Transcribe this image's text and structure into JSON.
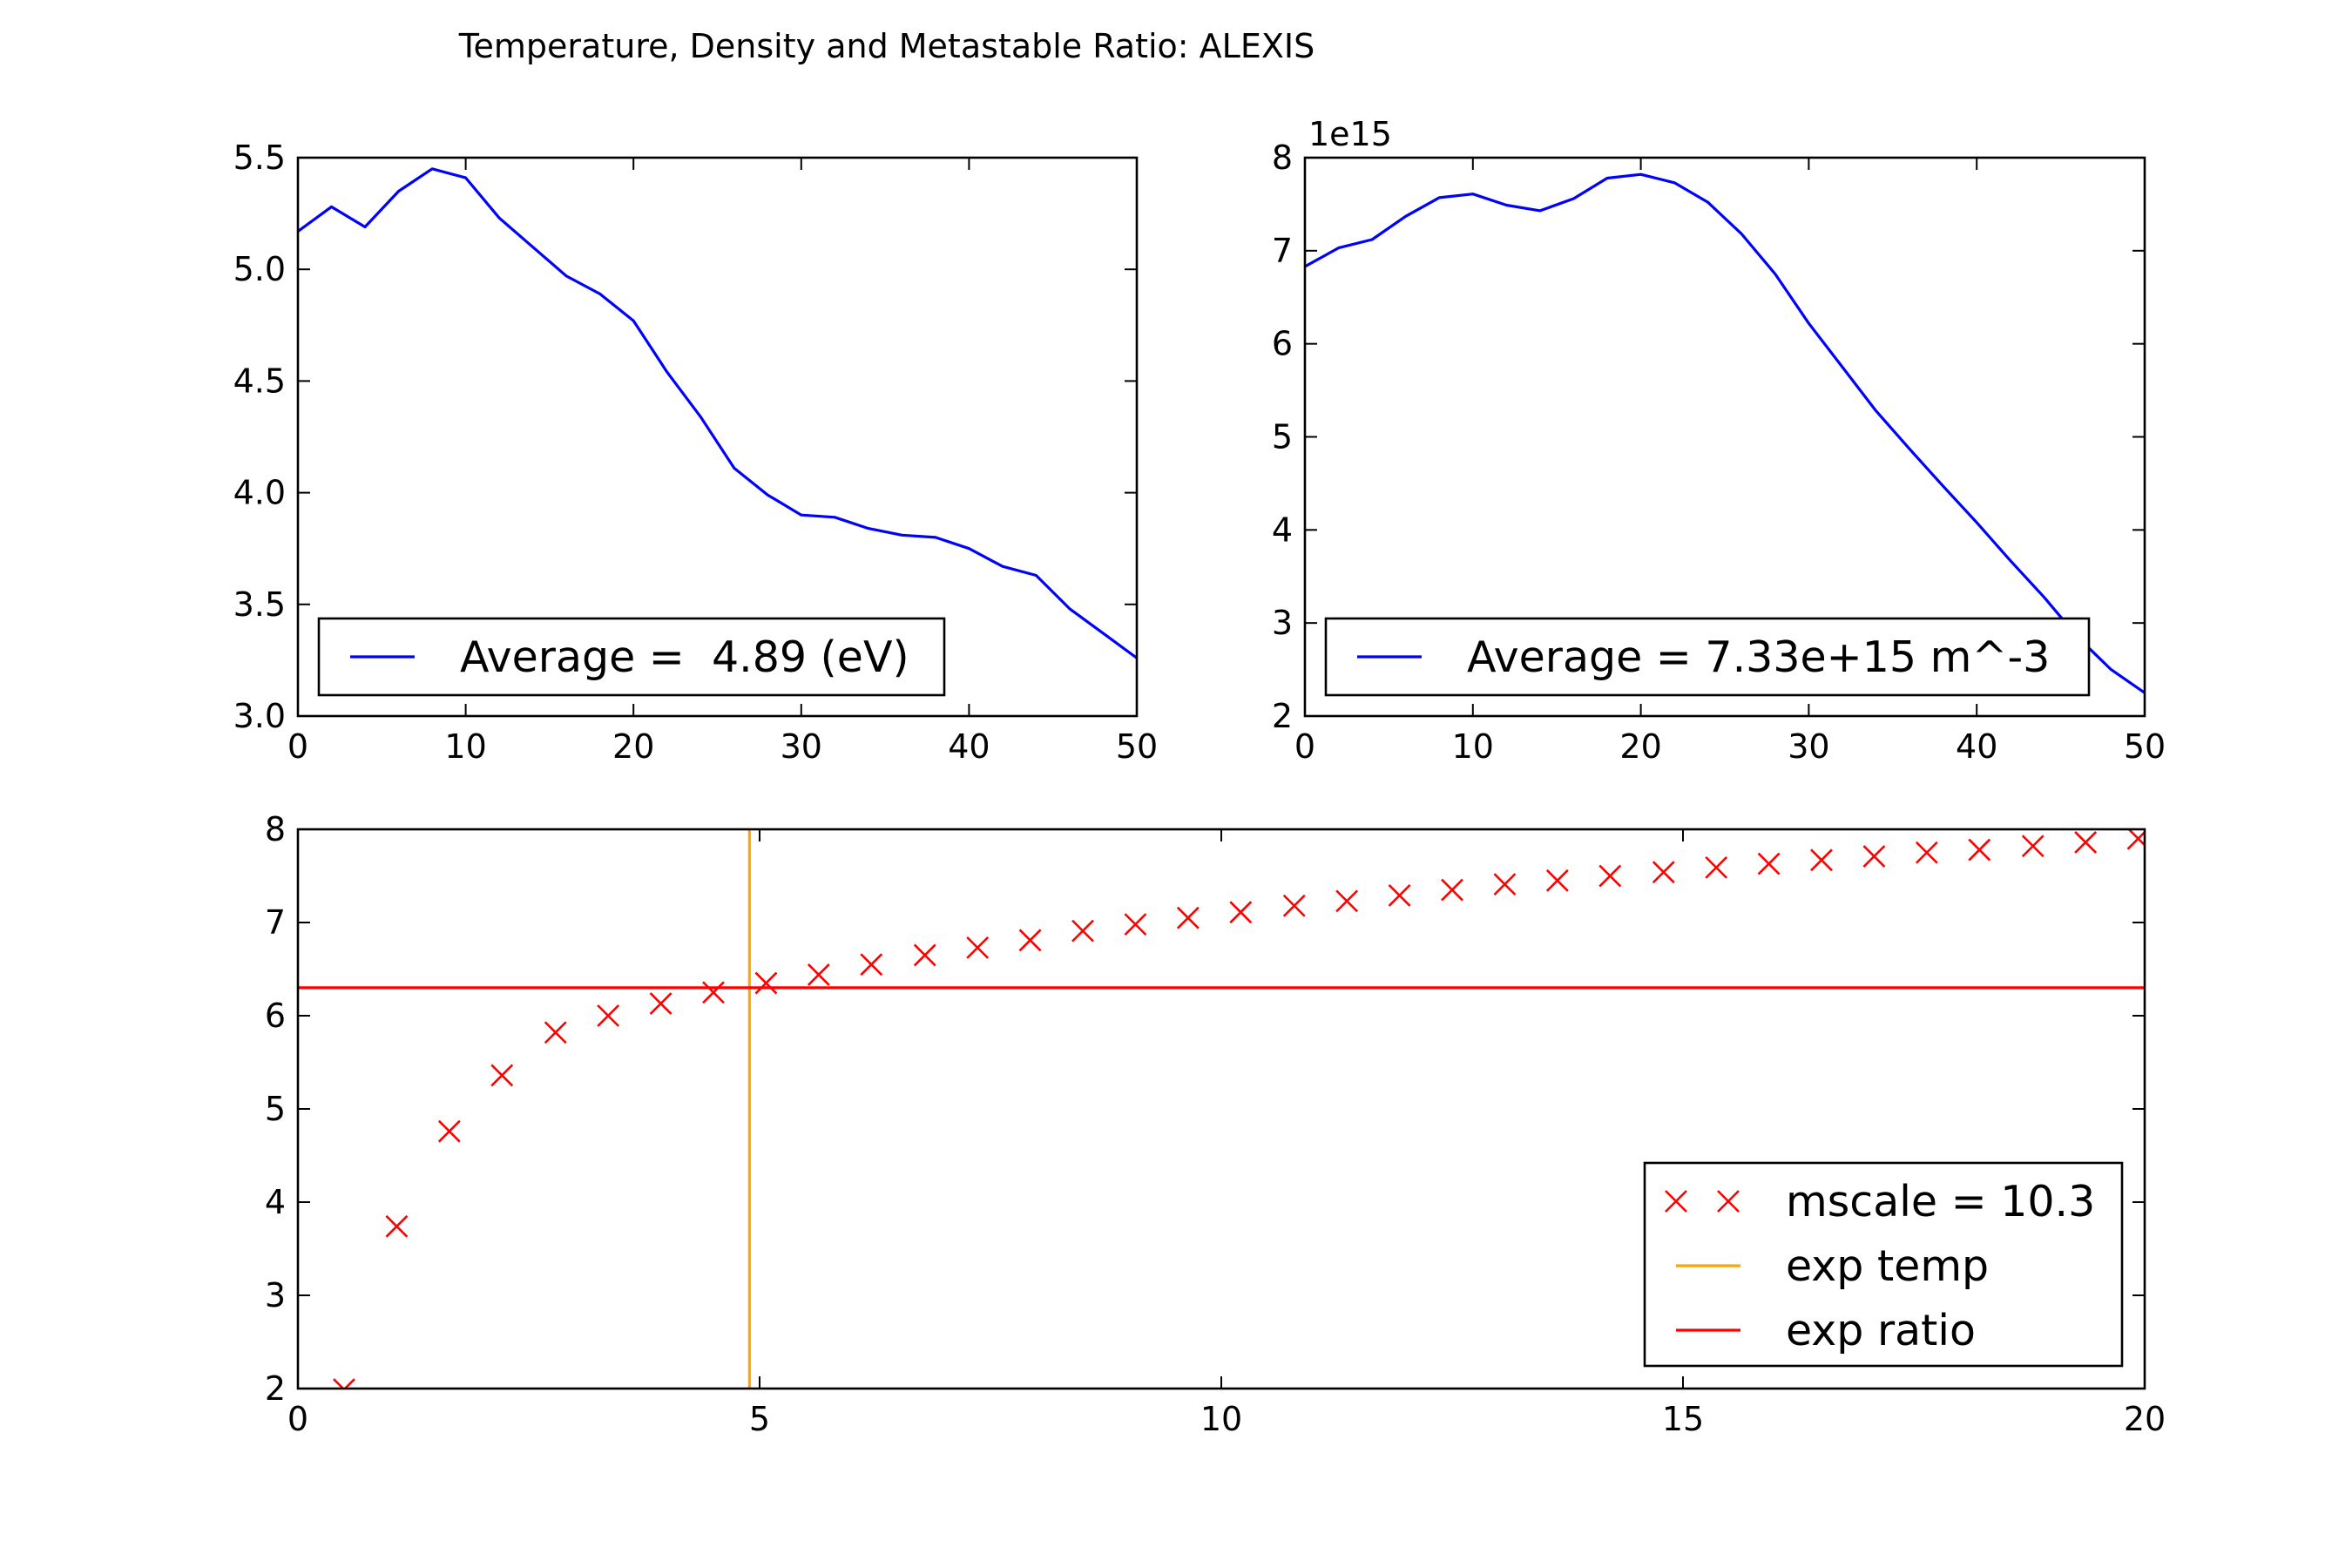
{
  "figure": {
    "title": "Temperature, Density and Metastable Ratio: ALEXIS"
  },
  "chart_data": [
    {
      "type": "line",
      "name": "temperature",
      "xlim": [
        0,
        50
      ],
      "ylim": [
        3.0,
        5.5
      ],
      "xticks": [
        0,
        10,
        20,
        30,
        40,
        50
      ],
      "xtick_labels": [
        "0",
        "10",
        "20",
        "30",
        "40",
        "50"
      ],
      "yticks": [
        3.0,
        3.5,
        4.0,
        4.5,
        5.0,
        5.5
      ],
      "ytick_labels": [
        "3.0",
        "3.5",
        "4.0",
        "4.5",
        "5.0",
        "5.5"
      ],
      "legend_position": "lower-center",
      "series": [
        {
          "name": "Average =  4.89 (eV)",
          "color": "#0000ff",
          "style": "line",
          "x": [
            0,
            2,
            4,
            6,
            8,
            10,
            12,
            14,
            16,
            18,
            20,
            22,
            24,
            26,
            28,
            30,
            32,
            34,
            36,
            38,
            40,
            42,
            44,
            46,
            48,
            50
          ],
          "y": [
            5.17,
            5.28,
            5.19,
            5.35,
            5.45,
            5.41,
            5.23,
            5.1,
            4.97,
            4.89,
            4.77,
            4.54,
            4.34,
            4.11,
            3.99,
            3.9,
            3.89,
            3.84,
            3.81,
            3.8,
            3.75,
            3.67,
            3.63,
            3.48,
            3.37,
            3.26
          ]
        }
      ]
    },
    {
      "type": "line",
      "name": "density",
      "xlim": [
        0,
        50
      ],
      "ylim": [
        2,
        8
      ],
      "y_offset_label": "1e15",
      "xticks": [
        0,
        10,
        20,
        30,
        40,
        50
      ],
      "xtick_labels": [
        "0",
        "10",
        "20",
        "30",
        "40",
        "50"
      ],
      "yticks": [
        2,
        3,
        4,
        5,
        6,
        7,
        8
      ],
      "ytick_labels": [
        "2",
        "3",
        "4",
        "5",
        "6",
        "7",
        "8"
      ],
      "legend_position": "lower-center",
      "series": [
        {
          "name": "Average = 7.33e+15 m^-3",
          "color": "#0000ff",
          "style": "line",
          "x": [
            0,
            2,
            4,
            6,
            8,
            10,
            12,
            14,
            16,
            18,
            20,
            22,
            24,
            26,
            28,
            30,
            32,
            34,
            36,
            38,
            40,
            42,
            44,
            46,
            48,
            50
          ],
          "y": [
            6.83,
            7.03,
            7.12,
            7.37,
            7.57,
            7.61,
            7.49,
            7.43,
            7.56,
            7.78,
            7.82,
            7.73,
            7.52,
            7.18,
            6.75,
            6.22,
            5.75,
            5.28,
            4.87,
            4.47,
            4.08,
            3.67,
            3.28,
            2.85,
            2.5,
            2.25
          ]
        }
      ]
    },
    {
      "type": "scatter",
      "name": "metastable-ratio",
      "xlim": [
        0,
        20
      ],
      "ylim": [
        2,
        8
      ],
      "xticks": [
        0,
        5,
        10,
        15,
        20
      ],
      "xtick_labels": [
        "0",
        "5",
        "10",
        "15",
        "20"
      ],
      "yticks": [
        2,
        3,
        4,
        5,
        6,
        7,
        8
      ],
      "ytick_labels": [
        "2",
        "3",
        "4",
        "5",
        "6",
        "7",
        "8"
      ],
      "legend_position": "lower-right",
      "series": [
        {
          "name": "mscale = 10.3",
          "color": "#ff0000",
          "style": "marker-x",
          "x": [
            0.5,
            1.07,
            1.64,
            2.21,
            2.79,
            3.36,
            3.93,
            4.5,
            5.07,
            5.64,
            6.21,
            6.79,
            7.36,
            7.93,
            8.5,
            9.07,
            9.64,
            10.21,
            10.79,
            11.36,
            11.93,
            12.5,
            13.07,
            13.64,
            14.21,
            14.79,
            15.36,
            15.93,
            16.5,
            17.07,
            17.64,
            18.21,
            18.79,
            19.36,
            19.93
          ],
          "y": [
            1.99,
            3.74,
            4.76,
            5.36,
            5.82,
            6.0,
            6.13,
            6.25,
            6.35,
            6.44,
            6.55,
            6.65,
            6.73,
            6.81,
            6.91,
            6.98,
            7.05,
            7.11,
            7.18,
            7.23,
            7.29,
            7.35,
            7.41,
            7.45,
            7.5,
            7.54,
            7.59,
            7.63,
            7.67,
            7.71,
            7.75,
            7.78,
            7.82,
            7.86,
            7.9
          ]
        },
        {
          "name": "exp temp",
          "color": "#ffa500",
          "style": "vline",
          "value": 4.89
        },
        {
          "name": "exp ratio",
          "color": "#ff0000",
          "style": "hline",
          "value": 6.3
        }
      ]
    }
  ]
}
